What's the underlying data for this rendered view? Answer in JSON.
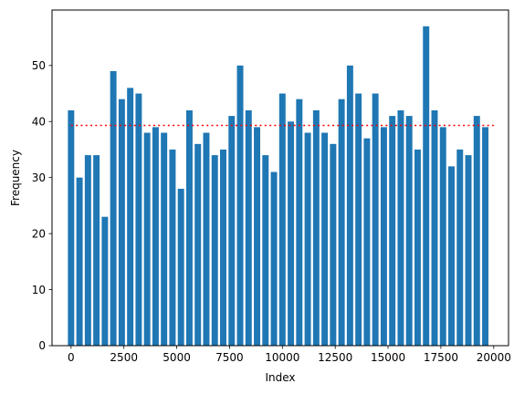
{
  "chart_data": {
    "type": "bar",
    "xlabel": "Index",
    "ylabel": "Frequency",
    "xlim": [
      -900,
      20700
    ],
    "ylim": [
      0,
      59.9
    ],
    "x_ticks": [
      0,
      2500,
      5000,
      7500,
      10000,
      12500,
      15000,
      17500,
      20000
    ],
    "y_ticks": [
      0,
      10,
      20,
      30,
      40,
      50
    ],
    "bar_width": 300,
    "bar_color": "#1f77b4",
    "categories": [
      0,
      400,
      800,
      1200,
      1600,
      2000,
      2400,
      2800,
      3200,
      3600,
      4000,
      4400,
      4800,
      5200,
      5600,
      6000,
      6400,
      6800,
      7200,
      7600,
      8000,
      8400,
      8800,
      9200,
      9600,
      10000,
      10400,
      10800,
      11200,
      11600,
      12000,
      12400,
      12800,
      13200,
      13600,
      14000,
      14400,
      14800,
      15200,
      15600,
      16000,
      16400,
      16800,
      17200,
      17600,
      18000,
      18400,
      18800,
      19200,
      19600
    ],
    "values": [
      42,
      30,
      34,
      34,
      23,
      49,
      44,
      46,
      45,
      38,
      39,
      38,
      35,
      28,
      42,
      36,
      38,
      34,
      35,
      41,
      50,
      42,
      39,
      34,
      31,
      45,
      40,
      44,
      38,
      42,
      38,
      36,
      44,
      50,
      45,
      37,
      45,
      39,
      41,
      42,
      41,
      35,
      57,
      42,
      39,
      32,
      35,
      34,
      41,
      39
    ],
    "mean_line": {
      "y": 39.3,
      "x_range": [
        0,
        20000
      ],
      "color": "#ff0000",
      "style": "dotted"
    },
    "grid": false,
    "legend": "none"
  }
}
